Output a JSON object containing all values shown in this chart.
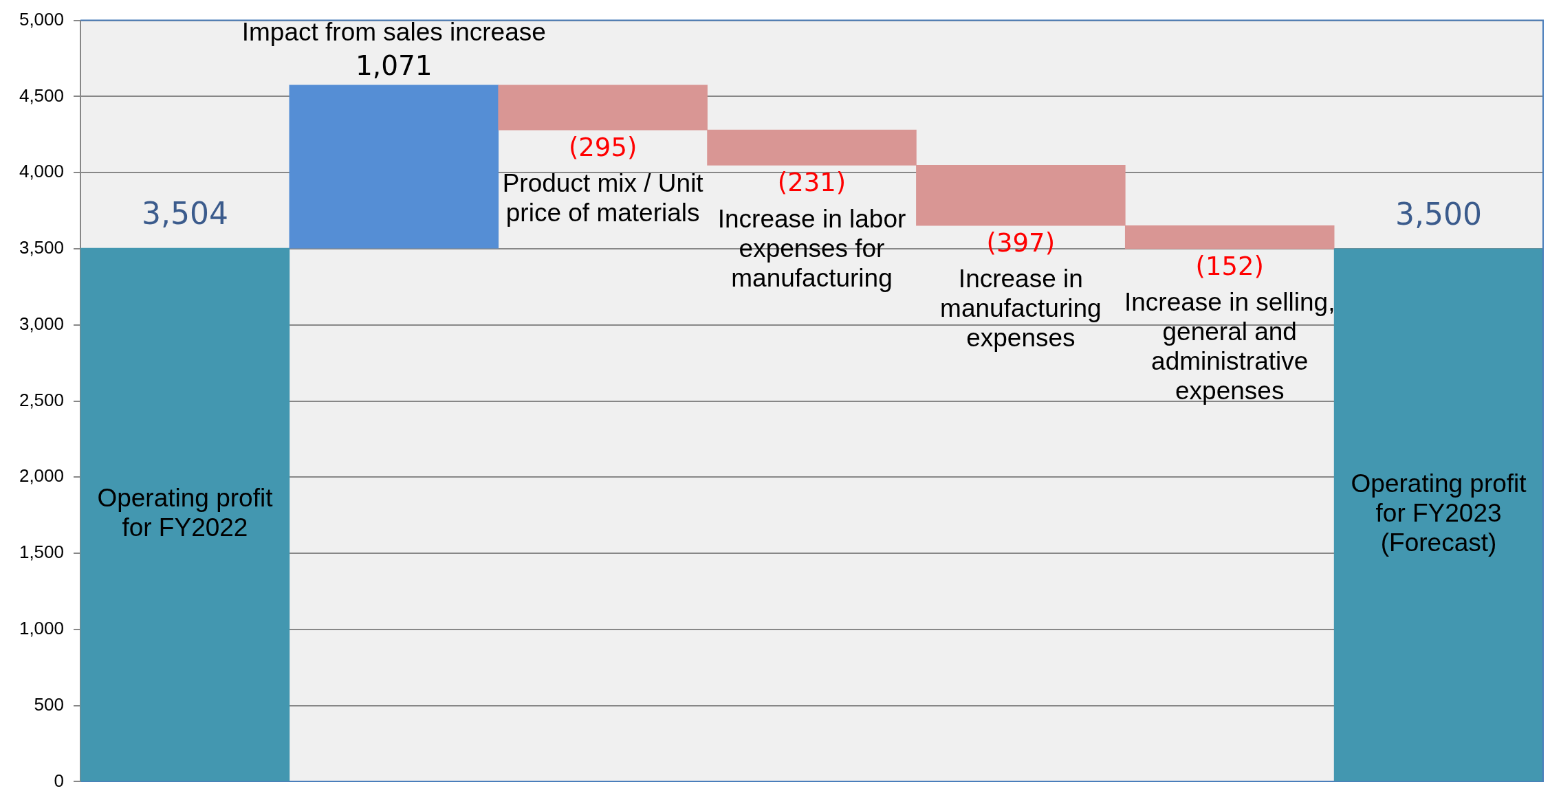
{
  "chart_data": {
    "type": "bar",
    "categories": [
      "Operating profit for FY2022",
      "Impact from sales increase",
      "Product mix / Unit price of materials",
      "Increase in labor expenses for manufacturing",
      "Increase in manufacturing expenses",
      "Increase in selling, general and administrative expenses",
      "Operating profit for FY2023 (Forecast)"
    ],
    "values": [
      3504,
      1071,
      -295,
      -231,
      -397,
      -152,
      3500
    ],
    "base": [
      0,
      3504,
      4575,
      4280,
      4049,
      3652,
      0
    ],
    "colors": [
      "#4397b0",
      "#558ed5",
      "#d99694",
      "#d99694",
      "#d99694",
      "#d99694",
      "#4397b0"
    ],
    "value_labels": [
      "3,504",
      "1,071",
      "(295)",
      "(231)",
      "(397)",
      "(152)",
      "3,500"
    ],
    "ylim": [
      0,
      5000
    ],
    "yticks": [
      0,
      500,
      {
        "value": 1000,
        "label": "1,000"
      },
      {
        "value": 1500,
        "label": "1,500"
      },
      {
        "value": 2000,
        "label": "2,000"
      },
      {
        "value": 2500,
        "label": "2,500"
      },
      {
        "value": 3000,
        "label": "3,000"
      },
      {
        "value": 3500,
        "label": "3,500"
      },
      {
        "value": 4000,
        "label": "4,000"
      },
      {
        "value": 4500,
        "label": "4,500"
      },
      {
        "value": 5000,
        "label": "5,000"
      }
    ],
    "grid": "y"
  }
}
